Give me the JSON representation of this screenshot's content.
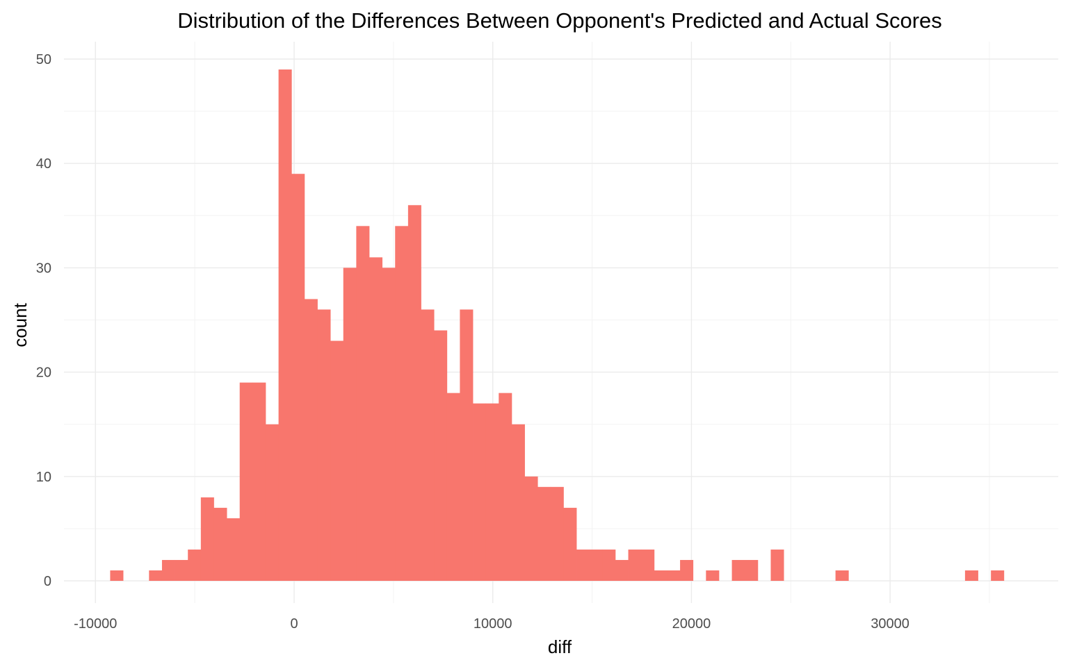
{
  "chart_data": {
    "type": "bar",
    "title": "Distribution of the Differences Between Opponent's Predicted and Actual Scores",
    "xlabel": "diff",
    "ylabel": "count",
    "xlim": [
      -10000,
      36500
    ],
    "ylim": [
      0,
      50
    ],
    "bin_width": 652,
    "x_ticks": [
      -10000,
      0,
      10000,
      20000,
      30000
    ],
    "x_tick_labels": [
      "-10000",
      "0",
      "10000",
      "20000",
      "30000"
    ],
    "y_ticks": [
      0,
      10,
      20,
      30,
      40,
      50
    ],
    "y_tick_labels": [
      "0",
      "10",
      "20",
      "30",
      "40",
      "50"
    ],
    "bin_starts": [
      -9260,
      -8608,
      -7956,
      -7304,
      -6652,
      -6000,
      -5348,
      -4696,
      -4044,
      -3392,
      -2740,
      -2088,
      -1436,
      -784,
      -132,
      520,
      1172,
      1824,
      2476,
      3128,
      3780,
      4432,
      5084,
      5736,
      6388,
      7040,
      7692,
      8344,
      8996,
      9648,
      10300,
      10952,
      11604,
      12256,
      12908,
      13560,
      14212,
      14864,
      15516,
      16168,
      16820,
      17472,
      18124,
      18776,
      19428,
      20080,
      20732,
      21384,
      22036,
      22688,
      23340,
      23992,
      24644,
      25296,
      25948,
      26600,
      27252,
      27904,
      28556,
      29208,
      29860,
      30512,
      31164,
      31816,
      32468,
      33120,
      33772,
      34424,
      35076,
      35728
    ],
    "values": [
      1,
      0,
      0,
      1,
      2,
      2,
      3,
      8,
      7,
      6,
      19,
      19,
      15,
      49,
      39,
      27,
      26,
      23,
      30,
      34,
      31,
      30,
      34,
      36,
      26,
      24,
      18,
      26,
      17,
      17,
      18,
      15,
      10,
      9,
      9,
      7,
      3,
      3,
      3,
      2,
      3,
      3,
      1,
      1,
      2,
      0,
      1,
      0,
      2,
      2,
      0,
      3,
      0,
      0,
      0,
      0,
      1,
      0,
      0,
      0,
      0,
      0,
      0,
      0,
      0,
      0,
      1,
      0,
      1,
      0
    ],
    "bar_color": "#f8766d",
    "grid": true,
    "legend": "none"
  }
}
